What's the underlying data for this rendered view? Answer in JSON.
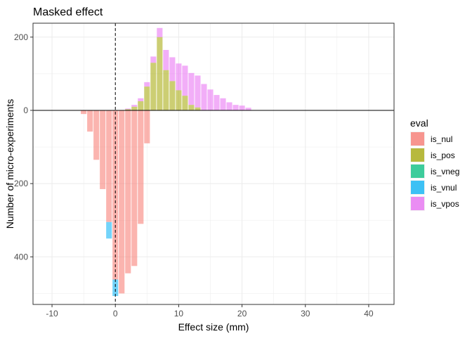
{
  "chart_data": {
    "type": "bar",
    "title": "Masked effect",
    "xlabel": "Effect size (mm)",
    "ylabel": "Number of micro-experiments",
    "xlim": [
      -13,
      44
    ],
    "ylim": [
      -530,
      238
    ],
    "x_ticks": [
      -10,
      0,
      10,
      20,
      30,
      40
    ],
    "x_tick_labels": [
      "-10",
      "0",
      "10",
      "20",
      "30",
      "40"
    ],
    "y_ticks": [
      200,
      0,
      -200,
      -400
    ],
    "y_tick_labels": [
      "200",
      "0",
      "200",
      "400"
    ],
    "grid": true,
    "reference_lines": {
      "vertical_dashed_x": 0,
      "horizontal_solid_y": 0
    },
    "legend": {
      "title": "eval",
      "position": "right",
      "entries": [
        {
          "name": "is_nul",
          "color": "#F8766D"
        },
        {
          "name": "is_pos",
          "color": "#A3A500"
        },
        {
          "name": "is_vneg",
          "color": "#00BF7D"
        },
        {
          "name": "is_vnul",
          "color": "#00B0F6"
        },
        {
          "name": "is_vpos",
          "color": "#E76BF3"
        }
      ]
    },
    "bar_alpha": 0.55,
    "bar_width": 0.9,
    "series": [
      {
        "name": "is_nul",
        "x": [
          -5,
          -4,
          -3,
          -2,
          -1,
          0,
          1,
          2,
          3,
          4,
          5
        ],
        "y": [
          -10,
          -58,
          -135,
          -215,
          -305,
          -462,
          -500,
          -445,
          -425,
          -310,
          -90
        ]
      },
      {
        "name": "is_vnul",
        "x": [
          -1,
          0
        ],
        "y": [
          -45,
          -45
        ]
      },
      {
        "name": "is_pos",
        "x": [
          2,
          3,
          4,
          5,
          6,
          7,
          8,
          9,
          10,
          11,
          12,
          13
        ],
        "y": [
          3,
          10,
          25,
          65,
          130,
          200,
          110,
          80,
          55,
          40,
          15,
          8
        ]
      },
      {
        "name": "is_vpos",
        "x": [
          2,
          3,
          4,
          5,
          6,
          7,
          8,
          9,
          10,
          11,
          12,
          13,
          14,
          15,
          16,
          17,
          18,
          19,
          20,
          21
        ],
        "y": [
          2,
          5,
          8,
          12,
          17,
          25,
          55,
          65,
          73,
          82,
          87,
          87,
          72,
          57,
          42,
          33,
          22,
          15,
          13,
          7
        ]
      }
    ]
  }
}
